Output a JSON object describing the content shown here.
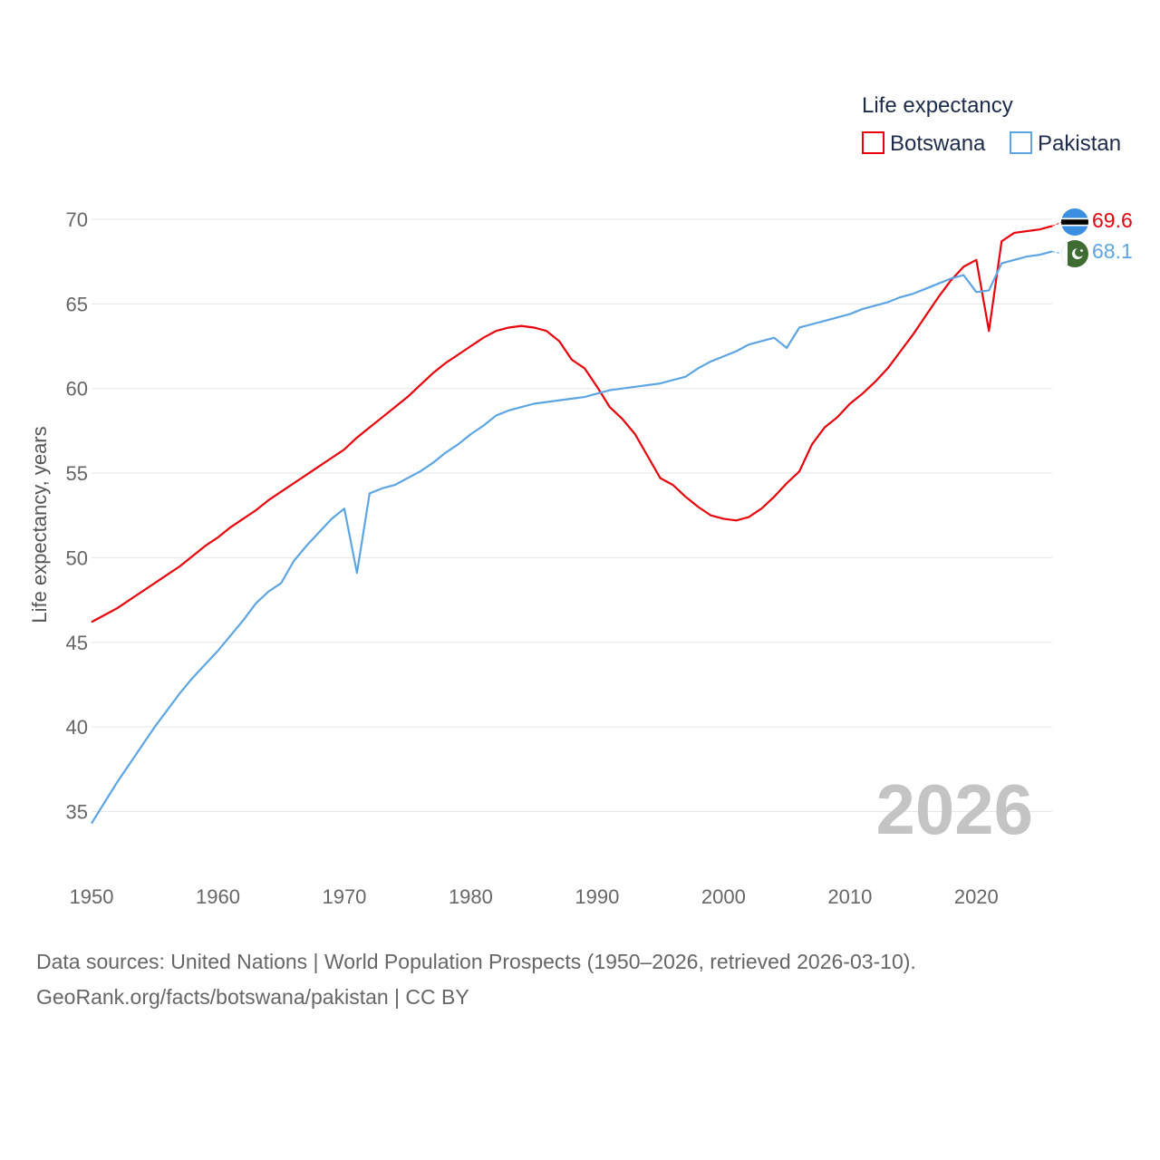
{
  "chart_data": {
    "type": "line",
    "legend_title": "Life expectancy",
    "ylabel": "Life expectancy, years",
    "year_label": "2026",
    "xlim": [
      1950,
      2026
    ],
    "ylim": [
      33,
      72
    ],
    "x_ticks": [
      1950,
      1960,
      1970,
      1980,
      1990,
      2000,
      2010,
      2020
    ],
    "y_ticks": [
      35,
      40,
      45,
      50,
      55,
      60,
      65,
      70
    ],
    "x": [
      1950,
      1951,
      1952,
      1953,
      1954,
      1955,
      1956,
      1957,
      1958,
      1959,
      1960,
      1961,
      1962,
      1963,
      1964,
      1965,
      1966,
      1967,
      1968,
      1969,
      1970,
      1971,
      1972,
      1973,
      1974,
      1975,
      1976,
      1977,
      1978,
      1979,
      1980,
      1981,
      1982,
      1983,
      1984,
      1985,
      1986,
      1987,
      1988,
      1989,
      1990,
      1991,
      1992,
      1993,
      1994,
      1995,
      1996,
      1997,
      1998,
      1999,
      2000,
      2001,
      2002,
      2003,
      2004,
      2005,
      2006,
      2007,
      2008,
      2009,
      2010,
      2011,
      2012,
      2013,
      2014,
      2015,
      2016,
      2017,
      2018,
      2019,
      2020,
      2021,
      2022,
      2023,
      2024,
      2025,
      2026
    ],
    "series": [
      {
        "name": "Botswana",
        "color": "#e8000b",
        "flag": "botswana-flag-icon",
        "end_label": "69.6",
        "values": [
          46.2,
          46.6,
          47.0,
          47.5,
          48.0,
          48.5,
          49.0,
          49.5,
          50.1,
          50.7,
          51.2,
          51.8,
          52.3,
          52.8,
          53.4,
          53.9,
          54.4,
          54.9,
          55.4,
          55.9,
          56.4,
          57.1,
          57.7,
          58.3,
          58.9,
          59.5,
          60.2,
          60.9,
          61.5,
          62.0,
          62.5,
          63.0,
          63.4,
          63.6,
          63.7,
          63.6,
          63.4,
          62.8,
          61.7,
          61.2,
          60.1,
          58.9,
          58.2,
          57.3,
          56.0,
          54.7,
          54.3,
          53.6,
          53.0,
          52.5,
          52.3,
          52.2,
          52.4,
          52.9,
          53.6,
          54.4,
          55.1,
          56.7,
          57.7,
          58.3,
          59.1,
          59.7,
          60.4,
          61.2,
          62.2,
          63.2,
          64.3,
          65.4,
          66.4,
          67.2,
          67.6,
          63.4,
          68.7,
          69.2,
          69.3,
          69.4,
          69.6
        ]
      },
      {
        "name": "Pakistan",
        "color": "#5da5e2",
        "flag": "pakistan-flag-icon",
        "end_label": "68.1",
        "values": [
          34.3,
          35.5,
          36.7,
          37.8,
          38.9,
          40.0,
          41.0,
          42.0,
          42.9,
          43.7,
          44.5,
          45.4,
          46.3,
          47.3,
          48.0,
          48.5,
          49.8,
          50.7,
          51.5,
          52.3,
          52.9,
          49.1,
          53.8,
          54.1,
          54.3,
          54.7,
          55.1,
          55.6,
          56.2,
          56.7,
          57.3,
          57.8,
          58.4,
          58.7,
          58.9,
          59.1,
          59.2,
          59.3,
          59.4,
          59.5,
          59.7,
          59.9,
          60.0,
          60.1,
          60.2,
          60.3,
          60.5,
          60.7,
          61.2,
          61.6,
          61.9,
          62.2,
          62.6,
          62.8,
          63.0,
          62.4,
          63.6,
          63.8,
          64.0,
          64.2,
          64.4,
          64.7,
          64.9,
          65.1,
          65.4,
          65.6,
          65.9,
          66.2,
          66.5,
          66.7,
          65.7,
          65.8,
          67.4,
          67.6,
          67.8,
          67.9,
          68.1
        ]
      }
    ]
  },
  "source": {
    "line1": "Data sources: United Nations | World Population Prospects (1950–2026, retrieved 2026-03-10).",
    "line2": "GeoRank.org/facts/botswana/pakistan | CC BY"
  }
}
